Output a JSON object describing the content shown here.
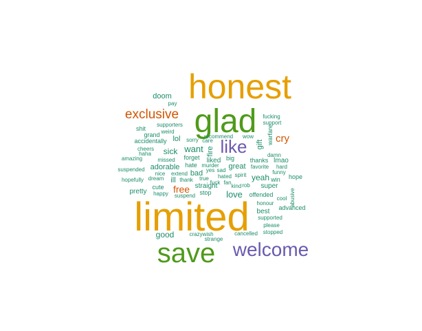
{
  "palette": {
    "orange": "#E69F00",
    "green": "#4F9A1A",
    "teal": "#1B8C6A",
    "red": "#D35400",
    "purple": "#6A5AAF"
  },
  "words": [
    {
      "text": "honest",
      "color": "orange"
    },
    {
      "text": "glad",
      "color": "green"
    },
    {
      "text": "limited",
      "color": "orange"
    },
    {
      "text": "save",
      "color": "green"
    },
    {
      "text": "welcome",
      "color": "purple"
    },
    {
      "text": "like",
      "color": "purple"
    },
    {
      "text": "exclusive",
      "color": "red"
    },
    {
      "text": "cry",
      "color": "red"
    },
    {
      "text": "free",
      "color": "red"
    },
    {
      "text": "doom",
      "color": "teal"
    },
    {
      "text": "pay",
      "color": "teal"
    },
    {
      "text": "fucking",
      "color": "teal"
    },
    {
      "text": "support",
      "color": "teal"
    },
    {
      "text": "supporters",
      "color": "teal"
    },
    {
      "text": "shit",
      "color": "teal"
    },
    {
      "text": "weird",
      "color": "teal"
    },
    {
      "text": "grand",
      "color": "teal"
    },
    {
      "text": "recommend",
      "color": "teal"
    },
    {
      "text": "wow",
      "color": "teal"
    },
    {
      "text": "warfare",
      "color": "teal"
    },
    {
      "text": "accidentally",
      "color": "teal"
    },
    {
      "text": "lol",
      "color": "teal"
    },
    {
      "text": "sorry",
      "color": "teal"
    },
    {
      "text": "care",
      "color": "teal"
    },
    {
      "text": "fire",
      "color": "teal"
    },
    {
      "text": "gift",
      "color": "teal"
    },
    {
      "text": "cheers",
      "color": "teal"
    },
    {
      "text": "sick",
      "color": "teal"
    },
    {
      "text": "want",
      "color": "teal"
    },
    {
      "text": "damn",
      "color": "teal"
    },
    {
      "text": "haha",
      "color": "teal"
    },
    {
      "text": "amazing",
      "color": "teal"
    },
    {
      "text": "missed",
      "color": "teal"
    },
    {
      "text": "forget",
      "color": "teal"
    },
    {
      "text": "liked",
      "color": "teal"
    },
    {
      "text": "big",
      "color": "teal"
    },
    {
      "text": "thanks",
      "color": "teal"
    },
    {
      "text": "lmao",
      "color": "teal"
    },
    {
      "text": "adorable",
      "color": "teal"
    },
    {
      "text": "hate",
      "color": "teal"
    },
    {
      "text": "murder",
      "color": "teal"
    },
    {
      "text": "great",
      "color": "teal"
    },
    {
      "text": "favorite",
      "color": "teal"
    },
    {
      "text": "hard",
      "color": "teal"
    },
    {
      "text": "suspended",
      "color": "teal"
    },
    {
      "text": "nice",
      "color": "teal"
    },
    {
      "text": "extend",
      "color": "teal"
    },
    {
      "text": "bad",
      "color": "teal"
    },
    {
      "text": "yes",
      "color": "teal"
    },
    {
      "text": "sad",
      "color": "teal"
    },
    {
      "text": "funny",
      "color": "teal"
    },
    {
      "text": "hopefully",
      "color": "teal"
    },
    {
      "text": "dream",
      "color": "teal"
    },
    {
      "text": "ill",
      "color": "teal"
    },
    {
      "text": "thank",
      "color": "teal"
    },
    {
      "text": "true",
      "color": "teal"
    },
    {
      "text": "hated",
      "color": "teal"
    },
    {
      "text": "spirit",
      "color": "teal"
    },
    {
      "text": "yeah",
      "color": "teal"
    },
    {
      "text": "win",
      "color": "teal"
    },
    {
      "text": "hope",
      "color": "teal"
    },
    {
      "text": "fuck",
      "color": "teal"
    },
    {
      "text": "fan",
      "color": "teal"
    },
    {
      "text": "kind",
      "color": "teal"
    },
    {
      "text": "rob",
      "color": "teal"
    },
    {
      "text": "super",
      "color": "teal"
    },
    {
      "text": "cute",
      "color": "teal"
    },
    {
      "text": "straight",
      "color": "teal"
    },
    {
      "text": "pretty",
      "color": "teal"
    },
    {
      "text": "happy",
      "color": "teal"
    },
    {
      "text": "suspend",
      "color": "teal"
    },
    {
      "text": "stop",
      "color": "teal"
    },
    {
      "text": "love",
      "color": "teal"
    },
    {
      "text": "offended",
      "color": "teal"
    },
    {
      "text": "abusive",
      "color": "teal"
    },
    {
      "text": "cool",
      "color": "teal"
    },
    {
      "text": "honour",
      "color": "teal"
    },
    {
      "text": "best",
      "color": "teal"
    },
    {
      "text": "advanced",
      "color": "teal"
    },
    {
      "text": "supported",
      "color": "teal"
    },
    {
      "text": "please",
      "color": "teal"
    },
    {
      "text": "good",
      "color": "teal"
    },
    {
      "text": "crazywish",
      "color": "teal"
    },
    {
      "text": "cancelled",
      "color": "teal"
    },
    {
      "text": "stopped",
      "color": "teal"
    },
    {
      "text": "strange",
      "color": "teal"
    }
  ]
}
